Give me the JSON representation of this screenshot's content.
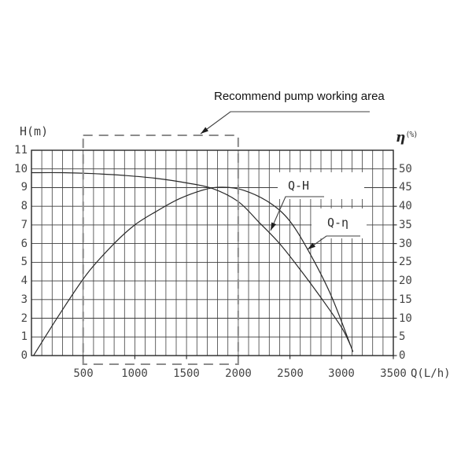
{
  "chart_data": {
    "type": "line",
    "title": "Recommend pump working area",
    "x_axis": {
      "label": "Q(L/h)",
      "min": 0,
      "max": 3500,
      "major_ticks": [
        500,
        1000,
        1500,
        2000,
        2500,
        3000,
        3500
      ],
      "minor_step": 100
    },
    "left_axis": {
      "label": "H(m)",
      "min": 0,
      "max": 11,
      "ticks": [
        0,
        1,
        2,
        3,
        4,
        5,
        6,
        7,
        8,
        9,
        10,
        11
      ]
    },
    "right_axis": {
      "label": "η(%)",
      "symbol": "η",
      "unit": "(%)",
      "min": 0,
      "max": 50,
      "ticks": [
        0,
        5,
        10,
        15,
        20,
        25,
        30,
        35,
        40,
        45,
        50
      ]
    },
    "series": [
      {
        "name": "Q-H",
        "axis": "left",
        "points": [
          [
            0,
            9.8
          ],
          [
            300,
            9.8
          ],
          [
            600,
            9.75
          ],
          [
            900,
            9.65
          ],
          [
            1200,
            9.5
          ],
          [
            1500,
            9.25
          ],
          [
            1750,
            8.95
          ],
          [
            2000,
            8.25
          ],
          [
            2200,
            7.15
          ],
          [
            2400,
            6.0
          ],
          [
            2600,
            4.6
          ],
          [
            2800,
            3.1
          ],
          [
            3000,
            1.5
          ],
          [
            3090,
            0.5
          ]
        ]
      },
      {
        "name": "Q-η",
        "axis": "right",
        "points": [
          [
            20,
            0
          ],
          [
            270,
            11
          ],
          [
            540,
            22
          ],
          [
            800,
            30
          ],
          [
            1000,
            35
          ],
          [
            1200,
            38.5
          ],
          [
            1430,
            42
          ],
          [
            1680,
            44.5
          ],
          [
            1850,
            45.1
          ],
          [
            2050,
            44.3
          ],
          [
            2300,
            41
          ],
          [
            2500,
            36
          ],
          [
            2700,
            27
          ],
          [
            2900,
            16
          ],
          [
            3110,
            1
          ]
        ]
      }
    ],
    "recommended_area": {
      "label": "Recommend pump working area",
      "q_min": 500,
      "q_max": 2000
    },
    "grid": true,
    "legend_position": "annotated-on-plot",
    "colors": {
      "curve": "#282828",
      "grid": "#3e3e3e",
      "border": "#262626",
      "dashed_area": "#8c8c8c",
      "leader": "#3f3f3f",
      "arrow": "#1e1e1e",
      "tick_text": "#454545",
      "background": "#ffffff"
    }
  }
}
